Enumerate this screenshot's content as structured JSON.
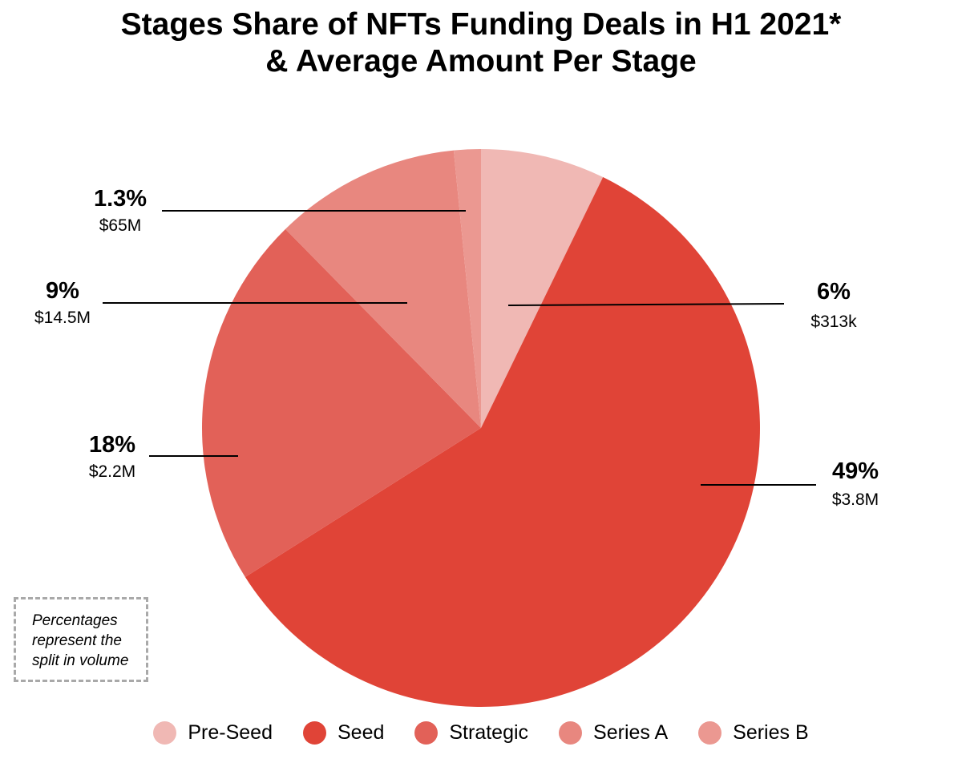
{
  "chart_data": {
    "type": "pie",
    "title_line1": "Stages Share of NFTs Funding Deals in H1 2021*",
    "title_line2": "& Average Amount Per Stage",
    "slices": [
      {
        "name": "Pre-Seed",
        "value": 6,
        "pct_label": "6%",
        "amount_label": "$313k",
        "color": "#f0b8b4"
      },
      {
        "name": "Seed",
        "value": 49,
        "pct_label": "49%",
        "amount_label": "$3.8M",
        "color": "#e04437"
      },
      {
        "name": "Strategic",
        "value": 18,
        "pct_label": "18%",
        "amount_label": "$2.2M",
        "color": "#e26158"
      },
      {
        "name": "Series A",
        "value": 9,
        "pct_label": "9%",
        "amount_label": "$14.5M",
        "color": "#e8877f"
      },
      {
        "name": "Series B",
        "value": 1.3,
        "pct_label": "1.3%",
        "amount_label": "$65M",
        "color": "#eb9891"
      }
    ],
    "note": [
      "Percentages",
      "represent the",
      "split in volume"
    ]
  }
}
